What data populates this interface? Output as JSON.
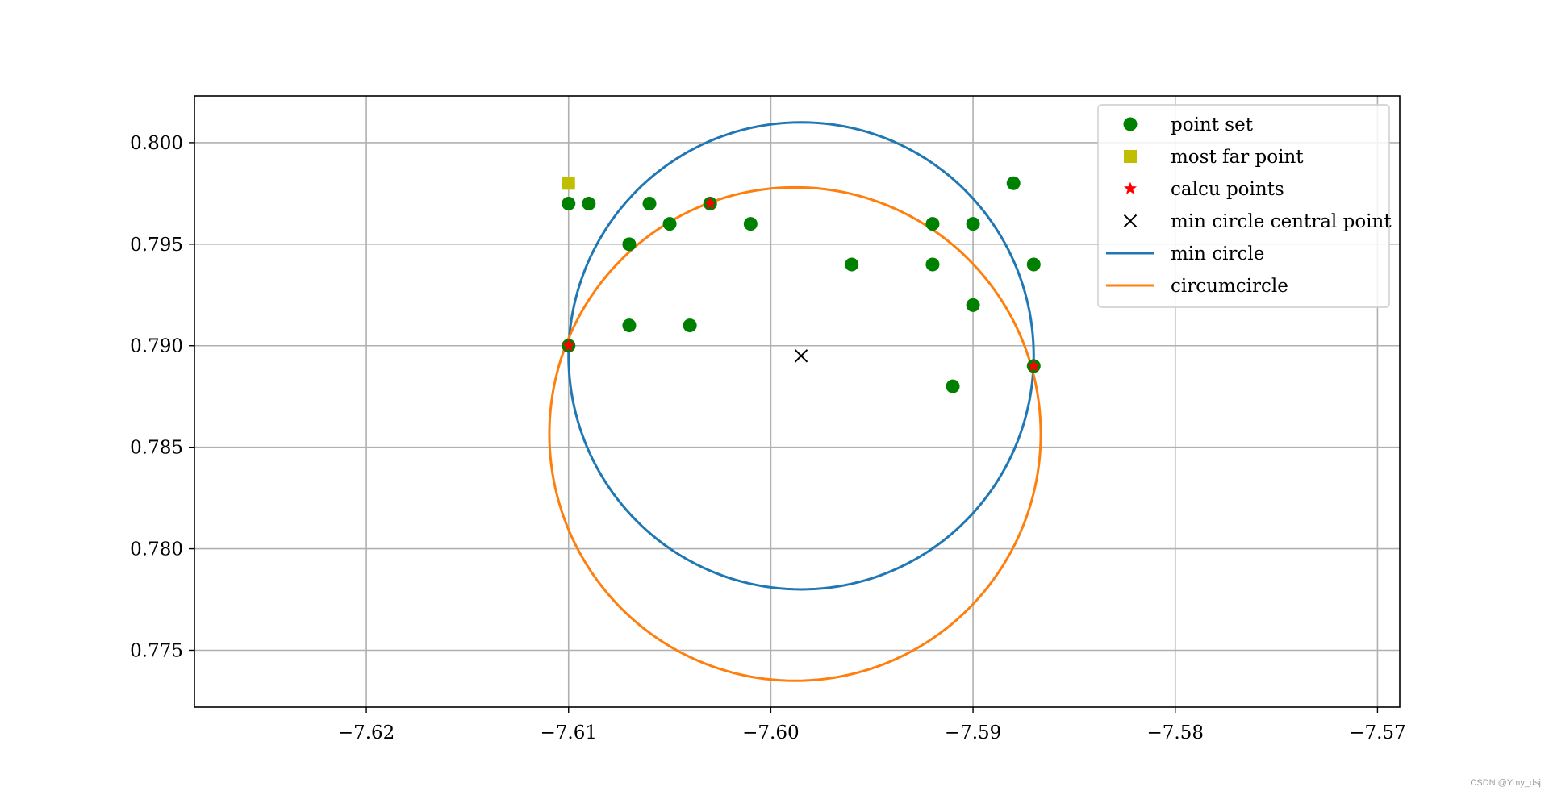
{
  "chart_data": {
    "type": "scatter",
    "title": "",
    "xlabel": "",
    "ylabel": "",
    "xlim": [
      -7.6285,
      -7.5689
    ],
    "ylim": [
      0.7722,
      0.8023
    ],
    "grid": true,
    "legend_position": "top-right",
    "x_ticks": [
      -7.62,
      -7.61,
      -7.6,
      -7.59,
      -7.58,
      -7.57
    ],
    "x_tick_labels": [
      "−7.62",
      "−7.61",
      "−7.60",
      "−7.59",
      "−7.58",
      "−7.57"
    ],
    "y_ticks": [
      0.8,
      0.795,
      0.79,
      0.785,
      0.78,
      0.775
    ],
    "y_tick_labels": [
      "0.800",
      "0.795",
      "0.790",
      "0.785",
      "0.780",
      "0.775"
    ],
    "series": [
      {
        "name": "point set",
        "kind": "scatter",
        "marker": "circle",
        "color": "#008000",
        "points": [
          [
            -7.61,
            0.797
          ],
          [
            -7.609,
            0.797
          ],
          [
            -7.607,
            0.795
          ],
          [
            -7.606,
            0.797
          ],
          [
            -7.605,
            0.796
          ],
          [
            -7.603,
            0.797
          ],
          [
            -7.601,
            0.796
          ],
          [
            -7.607,
            0.791
          ],
          [
            -7.604,
            0.791
          ],
          [
            -7.61,
            0.79
          ],
          [
            -7.596,
            0.794
          ],
          [
            -7.592,
            0.796
          ],
          [
            -7.59,
            0.796
          ],
          [
            -7.592,
            0.794
          ],
          [
            -7.588,
            0.798
          ],
          [
            -7.587,
            0.794
          ],
          [
            -7.59,
            0.792
          ],
          [
            -7.591,
            0.788
          ],
          [
            -7.587,
            0.789
          ]
        ]
      },
      {
        "name": "most far point",
        "kind": "scatter",
        "marker": "square",
        "color": "#bfbf00",
        "points": [
          [
            -7.61,
            0.798
          ]
        ]
      },
      {
        "name": "calcu points",
        "kind": "scatter",
        "marker": "star",
        "color": "#ff0000",
        "points": [
          [
            -7.61,
            0.79
          ],
          [
            -7.603,
            0.797
          ],
          [
            -7.587,
            0.789
          ]
        ]
      },
      {
        "name": "min circle central point",
        "kind": "scatter",
        "marker": "x",
        "color": "#000000",
        "points": [
          [
            -7.5985,
            0.7895
          ]
        ]
      },
      {
        "name": "min circle",
        "kind": "circle",
        "color": "#1f77b4",
        "center": [
          -7.5985,
          0.7895
        ],
        "radius": 0.0115
      },
      {
        "name": "circumcircle",
        "kind": "circle",
        "color": "#ff7f0e",
        "center": [
          -7.5988,
          0.78565
        ],
        "radius": 0.01215
      }
    ]
  },
  "watermark": "CSDN @Ymy_dsj"
}
